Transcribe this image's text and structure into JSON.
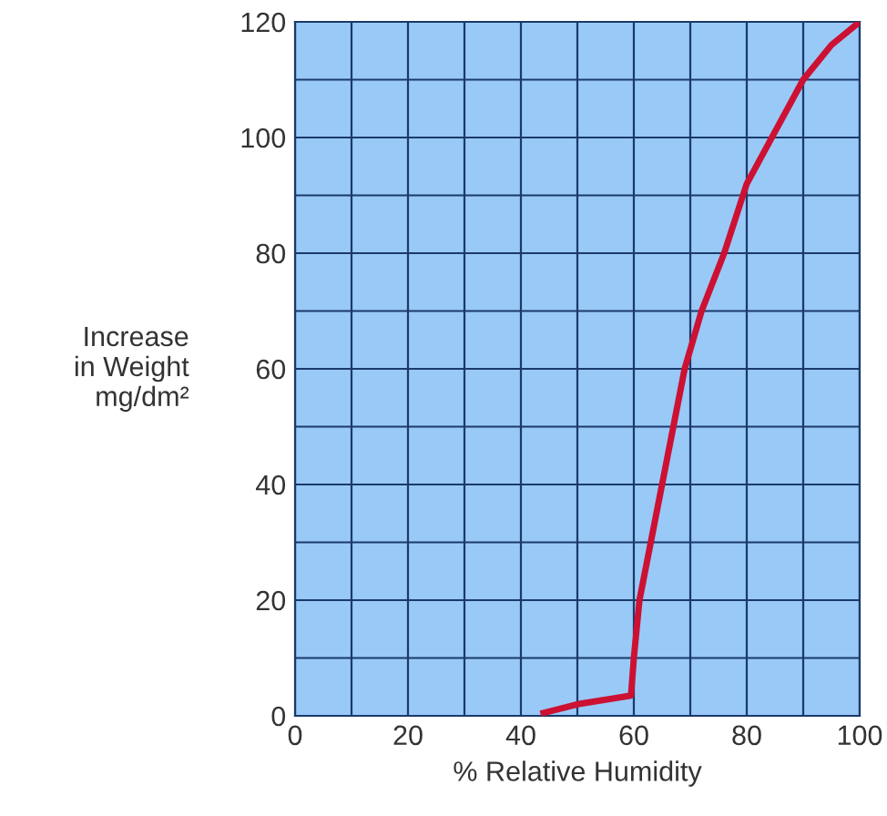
{
  "chart_data": {
    "type": "line",
    "xlabel": "% Relative Humidity",
    "ylabel": "Increase\nin Weight\nmg/dm²",
    "x": [
      44,
      50,
      59.5,
      60,
      61,
      63,
      65,
      67,
      69,
      72,
      76,
      80,
      85,
      90,
      95,
      100
    ],
    "series": [
      {
        "color": "#cc1133",
        "values": [
          0.5,
          2,
          3.5,
          10,
          20,
          30,
          40,
          50,
          60,
          70,
          80,
          92,
          101,
          110,
          116,
          120
        ]
      }
    ],
    "xlim": [
      0,
      100
    ],
    "ylim": [
      0,
      120
    ],
    "xticks": [
      0,
      20,
      40,
      60,
      80,
      100
    ],
    "yticks": [
      0,
      20,
      40,
      60,
      80,
      100,
      120
    ],
    "grid": true,
    "marker": "none",
    "line_style": "solid",
    "legend": false
  }
}
